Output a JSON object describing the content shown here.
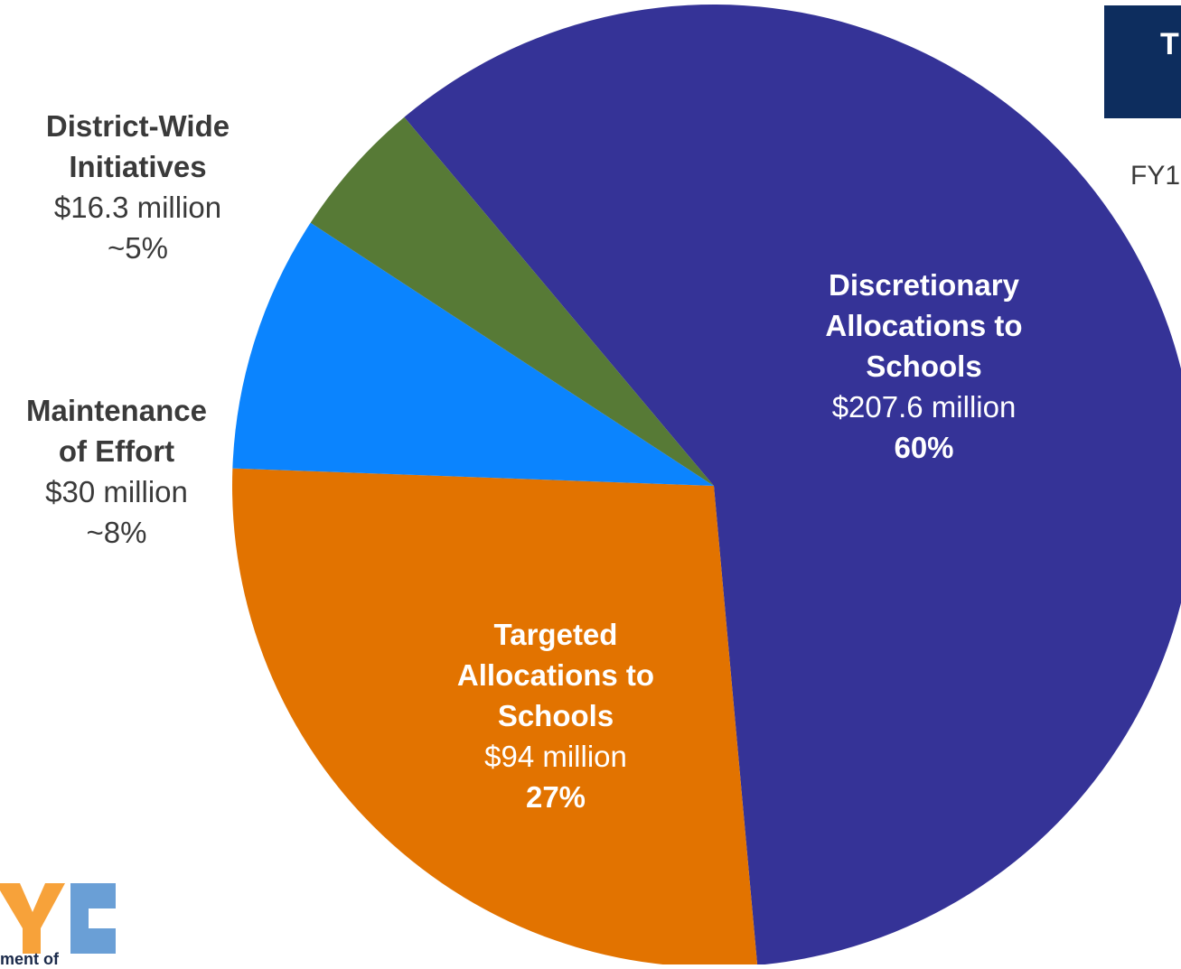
{
  "chart_data": {
    "type": "pie",
    "slices": [
      {
        "name": "Discretionary Allocations to Schools",
        "name_lines": [
          "Discretionary",
          "Allocations to",
          "Schools"
        ],
        "amount": "$207.6 million",
        "percent": "60%",
        "value": 207.6,
        "color": "#353397"
      },
      {
        "name": "Targeted Allocations to Schools",
        "name_lines": [
          "Targeted",
          "Allocations to",
          "Schools"
        ],
        "amount": "$94 million",
        "percent": "27%",
        "value": 94,
        "color": "#e27300"
      },
      {
        "name": "Maintenance of Effort",
        "name_lines": [
          "Maintenance",
          "of Effort"
        ],
        "amount": "$30 million",
        "percent": "~8%",
        "value": 30,
        "color": "#0b84fe"
      },
      {
        "name": "District-Wide Initiatives",
        "name_lines": [
          "District-Wide",
          "Initiatives"
        ],
        "amount": "$16.3 million",
        "percent": "~5%",
        "value": 16.3,
        "color": "#577a36"
      }
    ]
  },
  "header": {
    "title_fragment": "T",
    "subtitle_fragment": "FY1"
  },
  "logo": {
    "partial_text": "ment of",
    "colors": [
      "#f7a23a",
      "#6a9fd6"
    ]
  }
}
